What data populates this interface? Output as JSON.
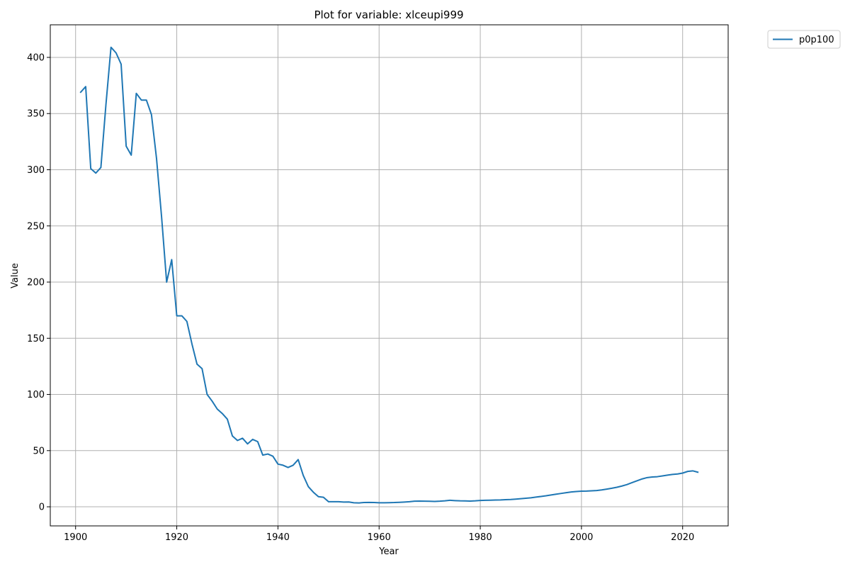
{
  "chart_data": {
    "type": "line",
    "title": "Plot for variable: xlceupi999",
    "xlabel": "Year",
    "ylabel": "Value",
    "xlim": [
      1895,
      2029
    ],
    "ylim": [
      -17,
      429
    ],
    "xticks": [
      1900,
      1920,
      1940,
      1960,
      1980,
      2000,
      2020
    ],
    "yticks": [
      0,
      50,
      100,
      150,
      200,
      250,
      300,
      350,
      400
    ],
    "grid": true,
    "legend_position": "outside-top-right",
    "colors": {
      "series": "#1f77b4"
    },
    "series": [
      {
        "name": "p0p100",
        "x": [
          1901,
          1902,
          1903,
          1904,
          1905,
          1906,
          1907,
          1908,
          1909,
          1910,
          1911,
          1912,
          1913,
          1914,
          1915,
          1916,
          1917,
          1918,
          1919,
          1920,
          1921,
          1922,
          1923,
          1924,
          1925,
          1926,
          1927,
          1928,
          1929,
          1930,
          1931,
          1932,
          1933,
          1934,
          1935,
          1936,
          1937,
          1938,
          1939,
          1940,
          1941,
          1942,
          1943,
          1944,
          1945,
          1946,
          1947,
          1948,
          1949,
          1950,
          1951,
          1952,
          1953,
          1954,
          1955,
          1956,
          1957,
          1958,
          1959,
          1960,
          1961,
          1962,
          1963,
          1964,
          1965,
          1966,
          1967,
          1968,
          1969,
          1970,
          1971,
          1972,
          1973,
          1974,
          1975,
          1976,
          1977,
          1978,
          1979,
          1980,
          1981,
          1982,
          1983,
          1984,
          1985,
          1986,
          1987,
          1988,
          1989,
          1990,
          1991,
          1992,
          1993,
          1994,
          1995,
          1996,
          1997,
          1998,
          1999,
          2000,
          2001,
          2002,
          2003,
          2004,
          2005,
          2006,
          2007,
          2008,
          2009,
          2010,
          2011,
          2012,
          2013,
          2014,
          2015,
          2016,
          2017,
          2018,
          2019,
          2020,
          2021,
          2022,
          2023
        ],
        "values": [
          369,
          374,
          301,
          297,
          302,
          358,
          409,
          404,
          394,
          321,
          313,
          368,
          362,
          362,
          349,
          310,
          258,
          200,
          220,
          170,
          170,
          165,
          145,
          127,
          123,
          100,
          94,
          87,
          83,
          78,
          63,
          59,
          61,
          56,
          60,
          58,
          46,
          47,
          45,
          38,
          37,
          35,
          37,
          42,
          28,
          18,
          13,
          9,
          8.5,
          4.5,
          4.5,
          4.5,
          4.2,
          4.3,
          3.6,
          3.4,
          3.8,
          3.9,
          3.8,
          3.6,
          3.6,
          3.7,
          3.8,
          4,
          4.2,
          4.5,
          5,
          5.1,
          5,
          4.9,
          4.8,
          5,
          5.3,
          5.8,
          5.5,
          5.3,
          5.2,
          5.1,
          5.3,
          5.6,
          5.8,
          5.9,
          6,
          6.1,
          6.3,
          6.5,
          6.8,
          7.2,
          7.6,
          8,
          8.6,
          9.2,
          9.8,
          10.5,
          11.2,
          11.9,
          12.6,
          13.2,
          13.6,
          13.9,
          14,
          14.2,
          14.5,
          15,
          15.7,
          16.5,
          17.4,
          18.5,
          19.8,
          21.5,
          23.2,
          24.8,
          26,
          26.5,
          26.8,
          27.5,
          28.2,
          28.8,
          29.2,
          30,
          31.5,
          32,
          30.8
        ]
      }
    ]
  }
}
